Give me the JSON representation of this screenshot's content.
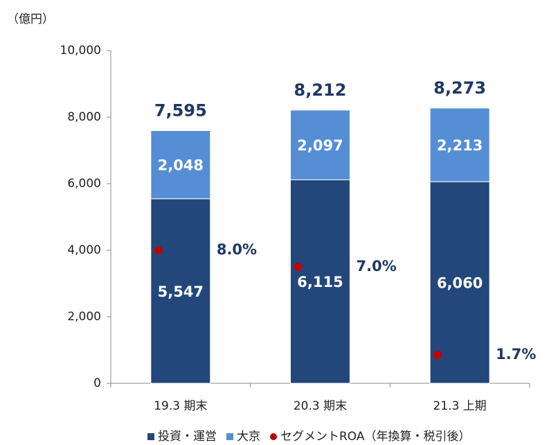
{
  "chart_data": {
    "type": "stacked-bar",
    "y_label": "（億円）",
    "categories": [
      "19.3 期末",
      "20.3 期末",
      "21.3 上期"
    ],
    "series": [
      {
        "name": "投資・運営",
        "color": "#23477a",
        "values": [
          5547,
          6115,
          6060
        ],
        "value_labels": [
          "5,547",
          "6,115",
          "6,060"
        ]
      },
      {
        "name": "大京",
        "color": "#558ed5",
        "values": [
          2048,
          2097,
          2213
        ],
        "value_labels": [
          "2,048",
          "2,097",
          "2,213"
        ]
      },
      {
        "name": "セグメントROA（年換算・税引後）",
        "color": "#c00000",
        "axis": "y2",
        "values": [
          8.0,
          7.0,
          1.7
        ],
        "value_labels": [
          "8.0%",
          "7.0%",
          "1.7%"
        ]
      }
    ],
    "totals": [
      7595,
      8212,
      8273
    ],
    "total_labels": [
      "7,595",
      "8,212",
      "8,273"
    ],
    "ylim": [
      0,
      10000
    ],
    "yticks": [
      0,
      {
        "value": 2000,
        "label": "2,000"
      },
      {
        "value": 4000,
        "label": "4,000"
      },
      {
        "value": 6000,
        "label": "6,000"
      },
      {
        "value": 8000,
        "label": "8,000"
      },
      {
        "value": 10000,
        "label": "10,000"
      }
    ],
    "y2lim": [
      0,
      20
    ],
    "legend": "bottom"
  }
}
